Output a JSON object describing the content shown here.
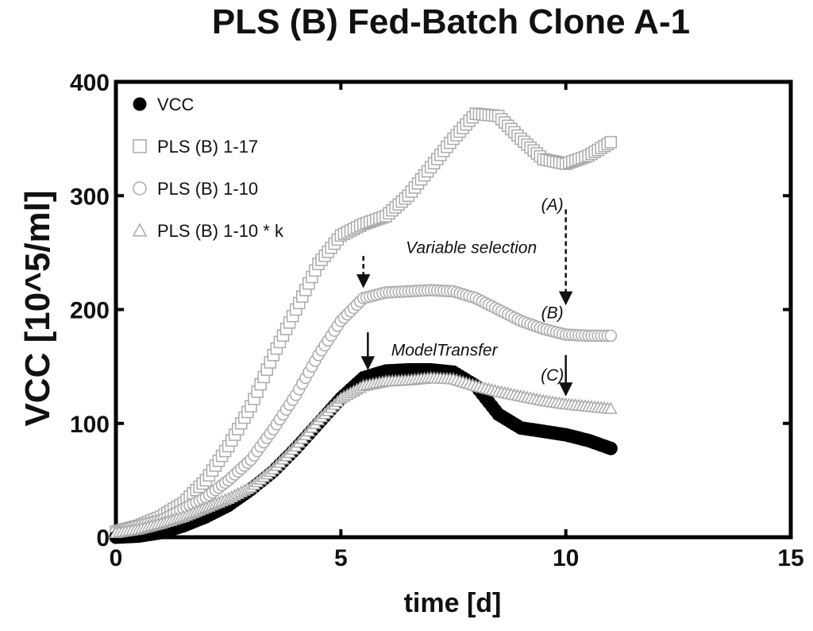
{
  "chart_data": {
    "type": "scatter",
    "title": "PLS (B) Fed-Batch Clone A-1",
    "xlabel": "time [d]",
    "ylabel": "VCC [10^5/ml]",
    "xlim": [
      0,
      15
    ],
    "ylim": [
      0,
      400
    ],
    "xticks": [
      0,
      5,
      10,
      15
    ],
    "yticks": [
      0,
      100,
      200,
      300,
      400
    ],
    "legend_position": "top-left",
    "series": [
      {
        "name": "VCC",
        "marker": "filled-circle",
        "color": "#000000",
        "x": [
          0,
          0.5,
          1,
          1.5,
          2,
          2.5,
          3,
          3.5,
          4,
          4.5,
          5,
          5.5,
          6,
          6.5,
          7,
          7.5,
          8,
          8.5,
          9,
          9.5,
          10,
          10.5,
          11
        ],
        "y": [
          0,
          1,
          4,
          10,
          18,
          28,
          42,
          58,
          78,
          100,
          122,
          140,
          146,
          147,
          147,
          145,
          133,
          108,
          96,
          93,
          90,
          85,
          78
        ]
      },
      {
        "name": "PLS (B) 1-17",
        "marker": "open-square",
        "color": "#aaaaaa",
        "x": [
          0,
          0.5,
          1,
          1.5,
          2,
          2.5,
          3,
          3.5,
          4,
          4.5,
          5,
          5.5,
          6,
          6.5,
          7,
          7.5,
          8,
          8.5,
          9,
          9.5,
          10,
          10.5,
          11
        ],
        "y": [
          5,
          10,
          18,
          30,
          50,
          80,
          115,
          160,
          200,
          240,
          265,
          275,
          282,
          300,
          325,
          350,
          372,
          370,
          350,
          332,
          328,
          335,
          347
        ]
      },
      {
        "name": "PLS (B) 1-10",
        "marker": "open-circle",
        "color": "#aaaaaa",
        "x": [
          0,
          0.5,
          1,
          1.5,
          2,
          2.5,
          3,
          3.5,
          4,
          4.5,
          5,
          5.5,
          6,
          6.5,
          7,
          7.5,
          8,
          8.5,
          9,
          9.5,
          10,
          10.5,
          11
        ],
        "y": [
          5,
          10,
          15,
          25,
          35,
          50,
          68,
          95,
          125,
          160,
          190,
          210,
          215,
          216,
          217,
          216,
          210,
          200,
          190,
          183,
          178,
          177,
          177
        ]
      },
      {
        "name": "PLS (B) 1-10 * k",
        "marker": "open-triangle",
        "color": "#aaaaaa",
        "x": [
          0,
          0.5,
          1,
          1.5,
          2,
          2.5,
          3,
          3.5,
          4,
          4.5,
          5,
          5.5,
          6,
          6.5,
          7,
          7.5,
          8,
          8.5,
          9,
          9.5,
          10,
          10.5,
          11
        ],
        "y": [
          4,
          7,
          12,
          18,
          26,
          34,
          44,
          60,
          80,
          103,
          122,
          133,
          137,
          138,
          140,
          139,
          133,
          128,
          124,
          120,
          117,
          115,
          113
        ]
      }
    ],
    "annotations": [
      {
        "text": "(A)",
        "x": 9.7,
        "y": 293,
        "arrow": "dashed",
        "arrow_x": 10,
        "arrow_from": 288,
        "arrow_to": 205
      },
      {
        "text": "Variable selection",
        "x": 7.9,
        "y": 255,
        "arrow": "dashed",
        "arrow_x": 5.5,
        "arrow_from": 247,
        "arrow_to": 220
      },
      {
        "text": "(B)",
        "x": 9.7,
        "y": 198,
        "arrow": "none"
      },
      {
        "text": "ModelTransfer",
        "x": 7.3,
        "y": 165,
        "arrow": "solid",
        "arrow_x": 5.6,
        "arrow_from": 180,
        "arrow_to": 148
      },
      {
        "text": "(C)",
        "x": 9.7,
        "y": 143,
        "arrow": "solid",
        "arrow_x": 10,
        "arrow_from": 160,
        "arrow_to": 125
      }
    ]
  }
}
